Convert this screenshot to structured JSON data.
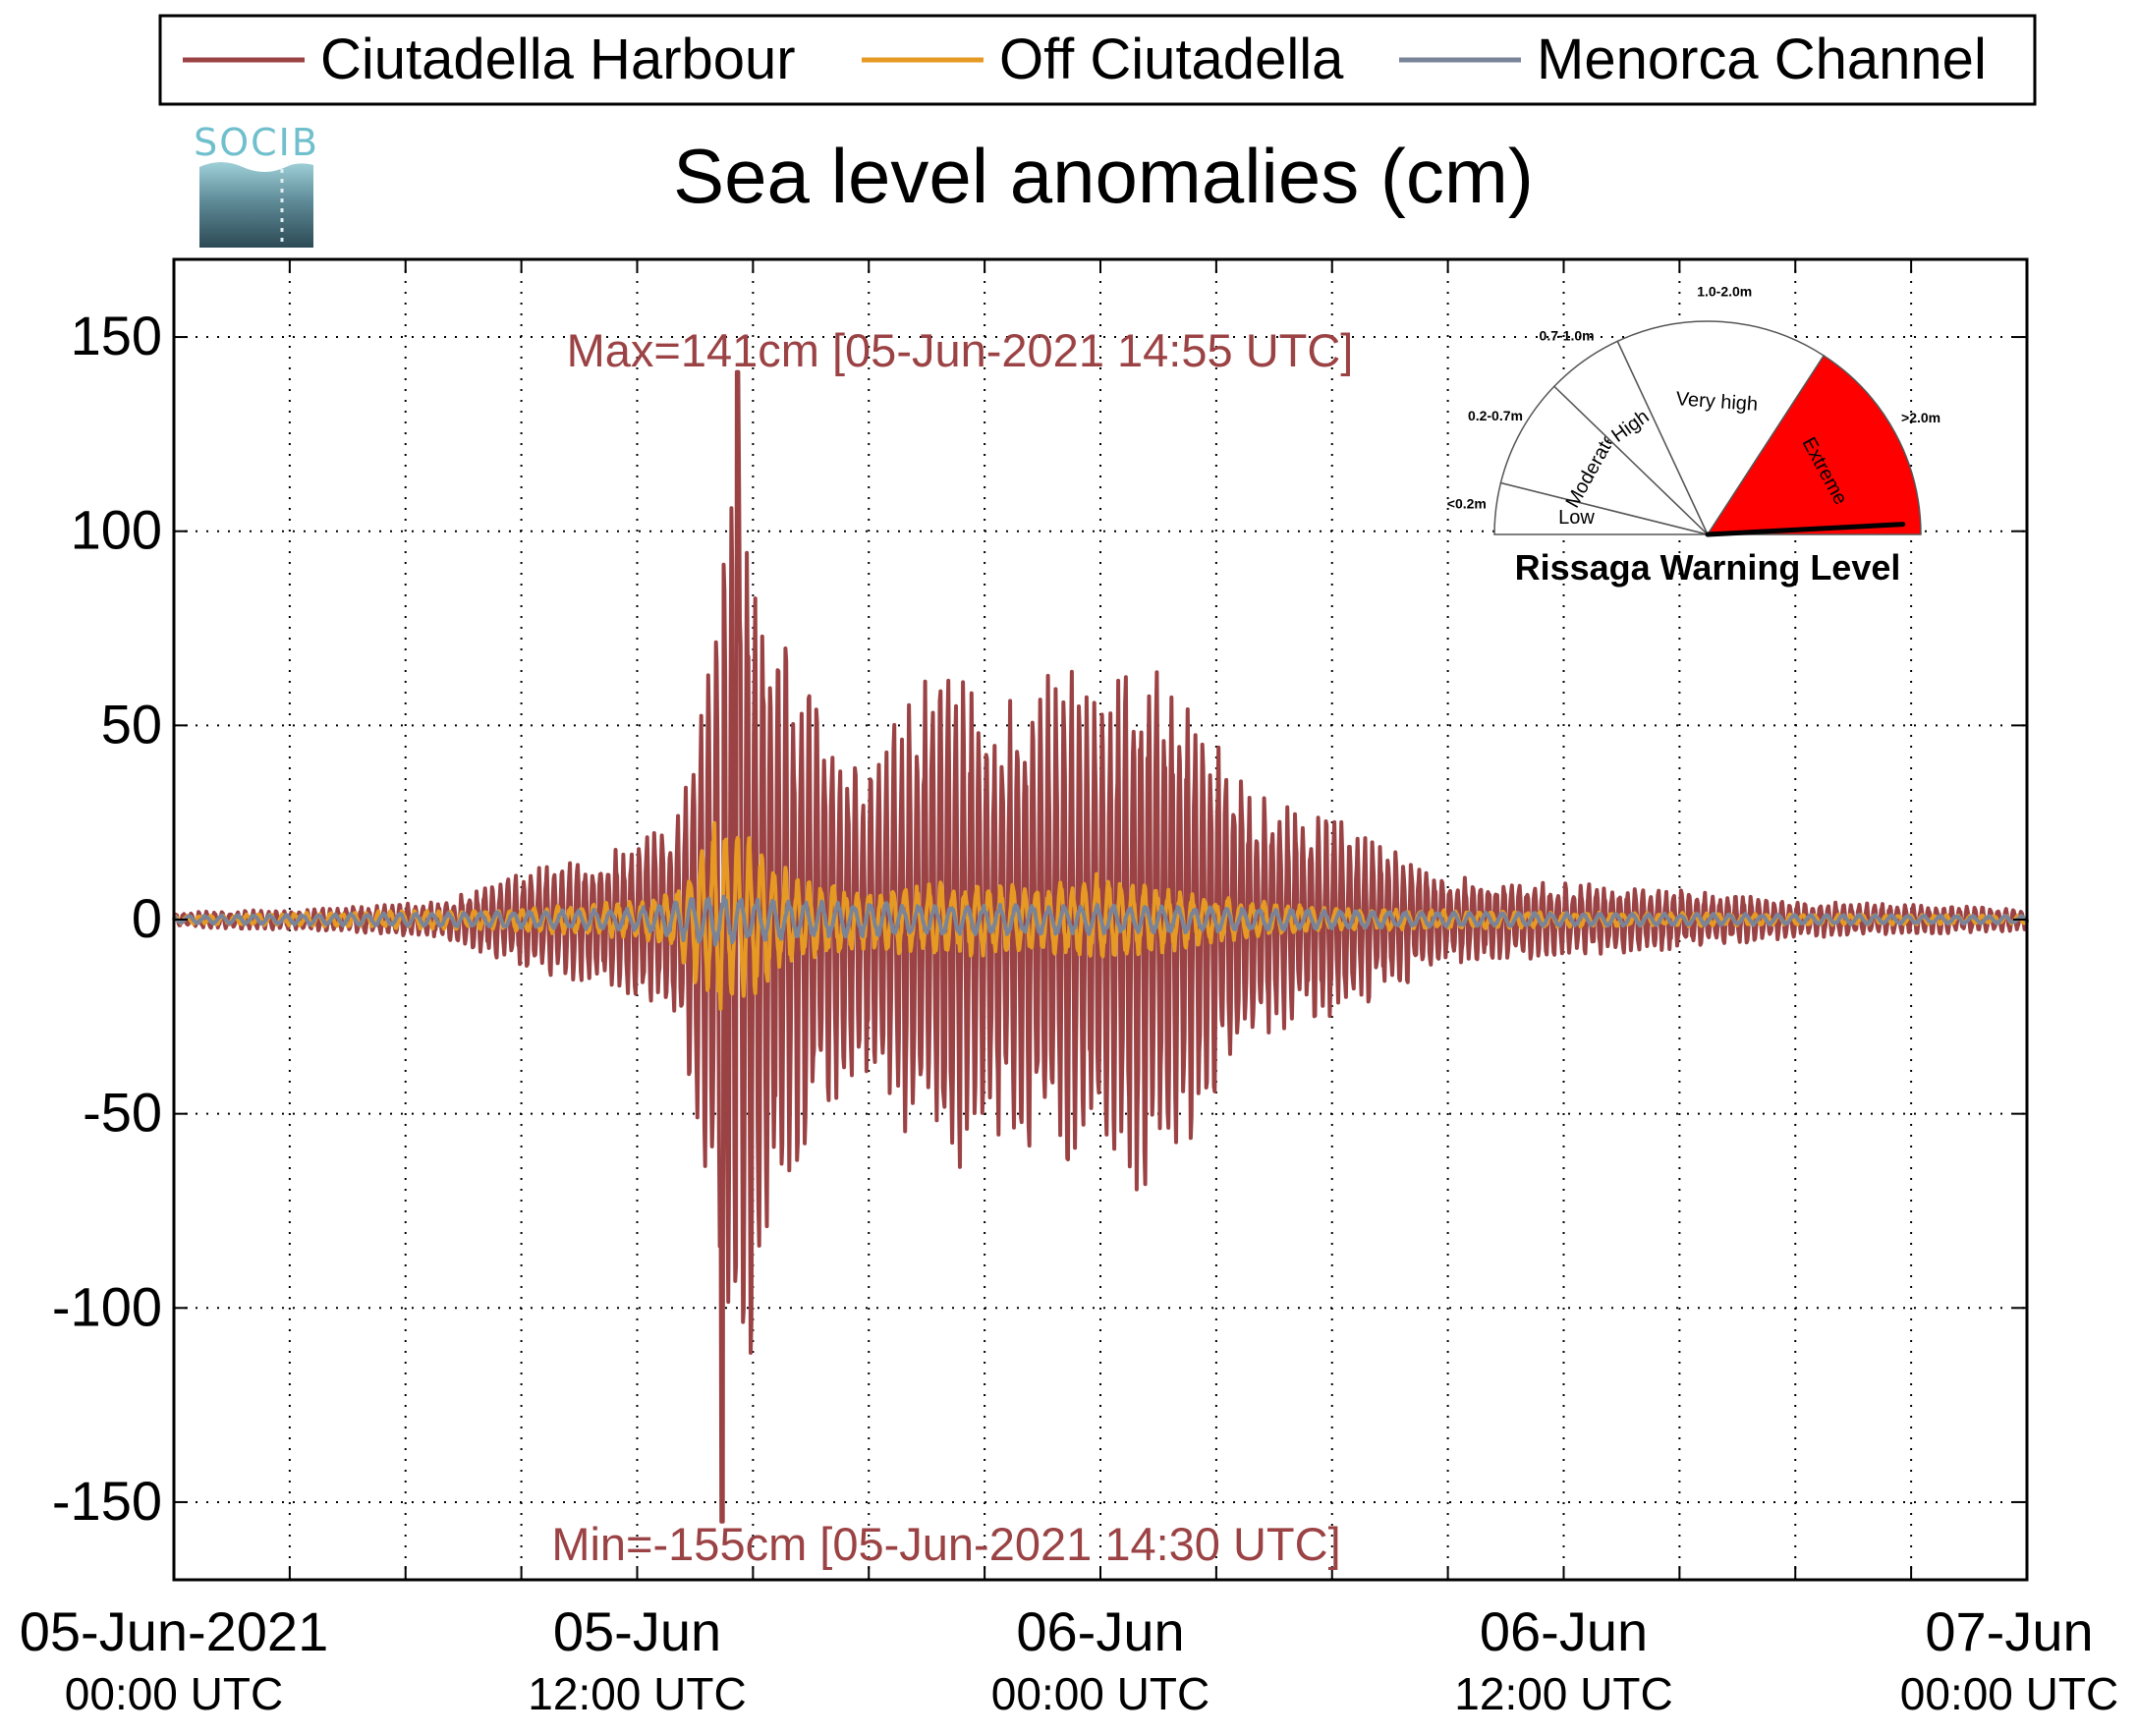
{
  "chart_data": {
    "type": "line",
    "title": "Sea level anomalies (cm)",
    "xlabel": "",
    "ylabel": "",
    "x_range_hours": [
      0,
      48
    ],
    "ylim": [
      -170,
      170
    ],
    "grid": true,
    "legend_placement": "top (above chart)",
    "y_ticks": [
      150,
      100,
      50,
      0,
      -50,
      -100,
      -150
    ],
    "y_tick_labels": [
      "150",
      "100",
      "50",
      "0",
      "-50",
      "-100",
      "-150"
    ],
    "x_ticks": [
      {
        "hour": 0,
        "line1": "05-Jun-2021",
        "line2": "00:00 UTC"
      },
      {
        "hour": 12,
        "line1": "05-Jun",
        "line2": "12:00 UTC"
      },
      {
        "hour": 24,
        "line1": "06-Jun",
        "line2": "00:00 UTC"
      },
      {
        "hour": 36,
        "line1": "06-Jun",
        "line2": "12:00 UTC"
      },
      {
        "hour": 48,
        "line1": "07-Jun",
        "line2": "00:00 UTC"
      }
    ],
    "series": [
      {
        "name": "Ciutadella Harbour",
        "color": "#9b4244",
        "envelope": [
          [
            0,
            2
          ],
          [
            4,
            3
          ],
          [
            7,
            5
          ],
          [
            8,
            9
          ],
          [
            9,
            13
          ],
          [
            10,
            16
          ],
          [
            11,
            18
          ],
          [
            12,
            22
          ],
          [
            13,
            28
          ],
          [
            13.8,
            70
          ],
          [
            14.2,
            120
          ],
          [
            14.6,
            141
          ],
          [
            15,
            120
          ],
          [
            15.5,
            85
          ],
          [
            16,
            70
          ],
          [
            17,
            50
          ],
          [
            18,
            45
          ],
          [
            19,
            60
          ],
          [
            20,
            75
          ],
          [
            21,
            60
          ],
          [
            22,
            60
          ],
          [
            23,
            70
          ],
          [
            24,
            60
          ],
          [
            25,
            75
          ],
          [
            26,
            65
          ],
          [
            27,
            50
          ],
          [
            28,
            35
          ],
          [
            29,
            30
          ],
          [
            30,
            28
          ],
          [
            31,
            22
          ],
          [
            33,
            12
          ],
          [
            36,
            10
          ],
          [
            39,
            8
          ],
          [
            42,
            5
          ],
          [
            48,
            3
          ]
        ]
      },
      {
        "name": "Off Ciutadella",
        "color": "#e69a24",
        "envelope": [
          [
            0,
            1
          ],
          [
            9,
            3
          ],
          [
            12,
            5
          ],
          [
            13,
            8
          ],
          [
            14,
            28
          ],
          [
            15,
            22
          ],
          [
            16,
            12
          ],
          [
            18,
            8
          ],
          [
            20,
            10
          ],
          [
            22,
            9
          ],
          [
            24,
            12
          ],
          [
            26,
            8
          ],
          [
            27,
            6
          ],
          [
            28,
            5
          ],
          [
            30,
            3
          ],
          [
            36,
            2
          ],
          [
            48,
            1
          ]
        ]
      },
      {
        "name": "Menorca Channel",
        "color": "#7a8499",
        "envelope": [
          [
            0,
            1
          ],
          [
            8,
            2
          ],
          [
            12,
            3
          ],
          [
            14,
            7
          ],
          [
            16,
            5
          ],
          [
            20,
            4
          ],
          [
            24,
            4
          ],
          [
            28,
            3
          ],
          [
            32,
            2
          ],
          [
            48,
            1
          ]
        ]
      }
    ],
    "extremes": {
      "max_cm": 141,
      "max_time": "05-Jun-2021 14:55 UTC",
      "min_cm": -155,
      "min_time": "05-Jun-2021 14:30 UTC"
    }
  },
  "texts": {
    "title": "Sea level anomalies (cm)",
    "max_label": "Max=141cm [05-Jun-2021 14:55 UTC]",
    "min_label": "Min=-155cm [05-Jun-2021 14:30 UTC]",
    "logo_text": "SOCIB"
  },
  "gauge": {
    "title": "Rissaga Warning Level",
    "current_level": "Extreme",
    "sectors": [
      {
        "name": "Low",
        "range": "<0.2m",
        "range_color": "#6e7b3a",
        "fill": "#ffffff"
      },
      {
        "name": "Moderate",
        "range": "0.2-0.7m",
        "range_color": "#3f6f80",
        "fill": "#ffffff"
      },
      {
        "name": "High",
        "range": "0.7-1.0m",
        "range_color": "#e6d800",
        "fill": "#ffffff"
      },
      {
        "name": "Very high",
        "range": "1.0-2.0m",
        "range_color": "#f08a00",
        "fill": "#ffffff"
      },
      {
        "name": "Extreme",
        "range": ">2.0m",
        "range_color": "#ff0000",
        "fill": "#ff0000"
      }
    ]
  }
}
